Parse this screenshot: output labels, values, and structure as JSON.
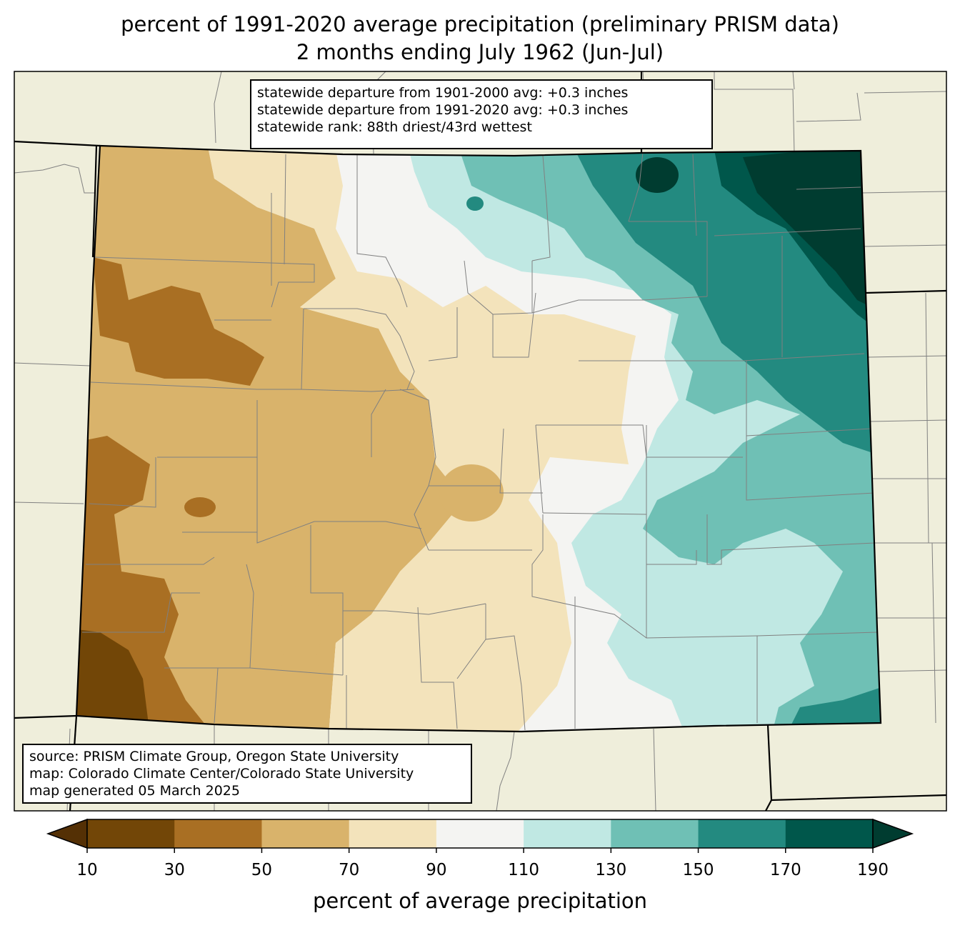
{
  "title": {
    "line1": "percent of 1991-2020 average precipitation (preliminary PRISM data)",
    "line2": "2 months ending July 1962 (Jun-Jul)"
  },
  "stats": {
    "line1": "statewide departure from 1901-2000 avg: +0.3 inches",
    "line2": "statewide departure from 1991-2020 avg: +0.3 inches",
    "line3": "statewide rank: 88th driest/43rd wettest"
  },
  "credits": {
    "line1": "source: PRISM Climate Group, Oregon State University",
    "line2": "map: Colorado Climate Center/Colorado State University",
    "line3": "map generated 05 March 2025"
  },
  "colorbar": {
    "label": "percent of average precipitation",
    "ticks": [
      "10",
      "30",
      "50",
      "70",
      "90",
      "110",
      "130",
      "150",
      "170",
      "190"
    ],
    "colors": [
      "#724607",
      "#a96f23",
      "#d9b36b",
      "#f3e3bb",
      "#f4f4f2",
      "#c0e8e3",
      "#6fc0b5",
      "#238a80",
      "#00574b"
    ],
    "under_color": "#543005",
    "over_color": "#003c30"
  },
  "map_colors": {
    "land_background": "#efeedb",
    "county_lines": "#808080",
    "state_lines": "#000000"
  }
}
